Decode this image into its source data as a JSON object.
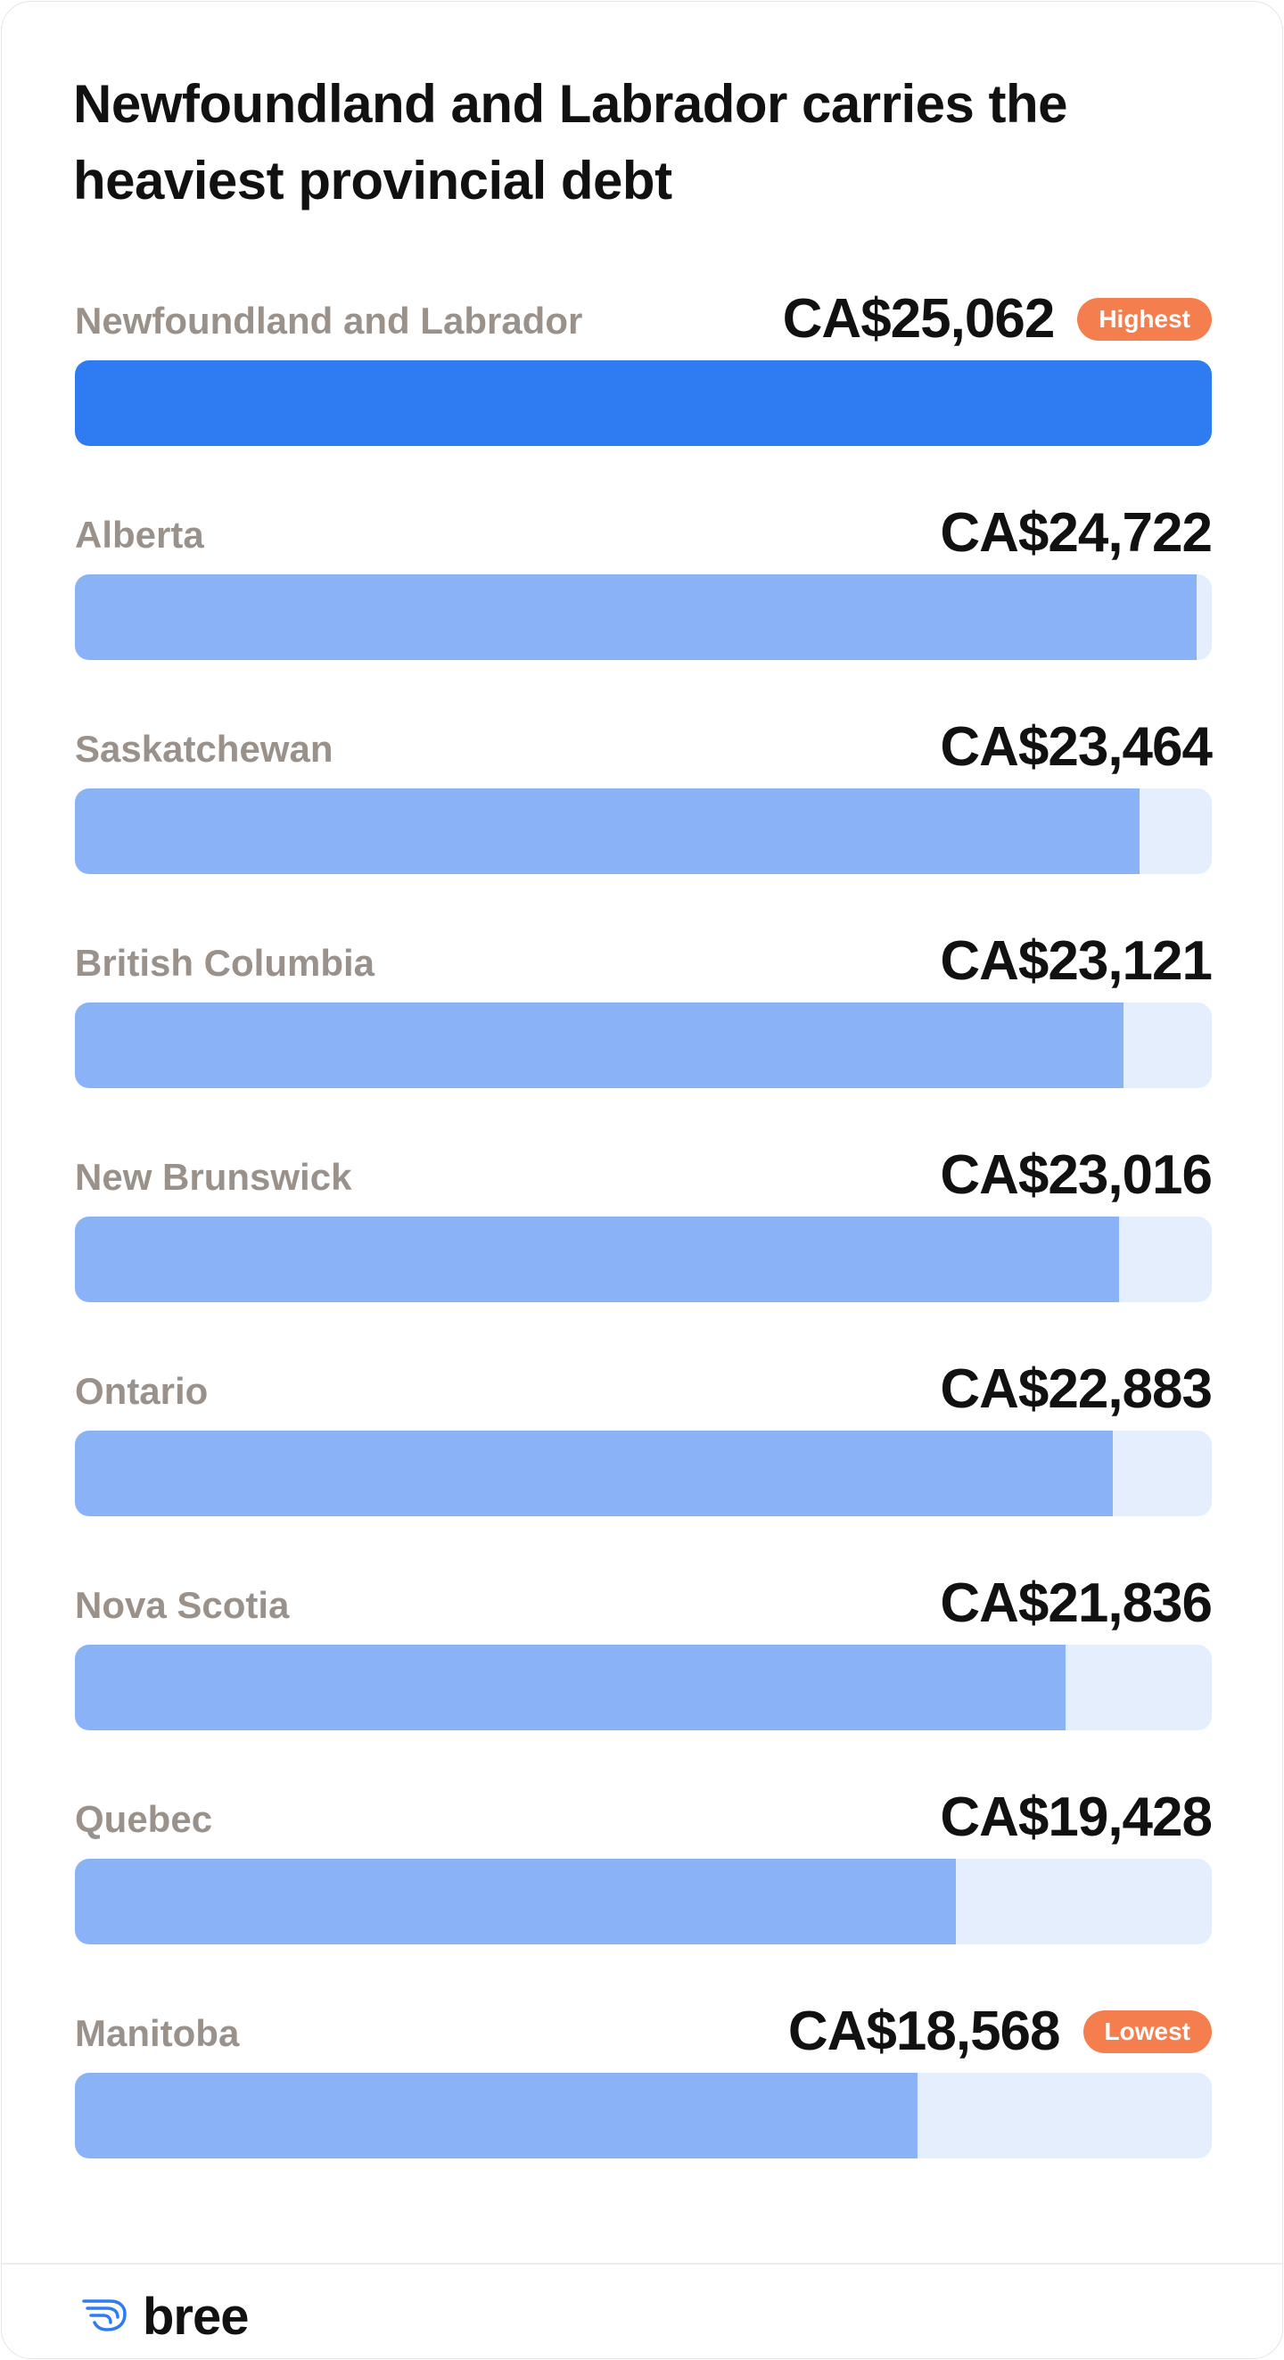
{
  "title": "Newfoundland and Labrador carries the heaviest provincial debt",
  "colors": {
    "highest_bar": "#2E7BF2",
    "bar": "#8AB2F6",
    "track": "#E4EEFC",
    "badge": "#F57E4F"
  },
  "chart_data": {
    "type": "bar",
    "orientation": "horizontal",
    "title": "Newfoundland and Labrador carries the heaviest provincial debt",
    "categories": [
      "Newfoundland and Labrador",
      "Alberta",
      "Saskatchewan",
      "British Columbia",
      "New Brunswick",
      "Ontario",
      "Nova Scotia",
      "Quebec",
      "Manitoba"
    ],
    "values": [
      25062,
      24722,
      23464,
      23121,
      23016,
      22883,
      21836,
      19428,
      18568
    ],
    "value_labels": [
      "CA$25,062",
      "CA$24,722",
      "CA$23,464",
      "CA$23,121",
      "CA$23,016",
      "CA$22,883",
      "CA$21,836",
      "CA$19,428",
      "CA$18,568"
    ],
    "badges": {
      "0": "Highest",
      "8": "Lowest"
    },
    "xlim": [
      0,
      25062
    ]
  },
  "footer": {
    "logo_text": "bree",
    "logo_icon": "wing-icon"
  }
}
